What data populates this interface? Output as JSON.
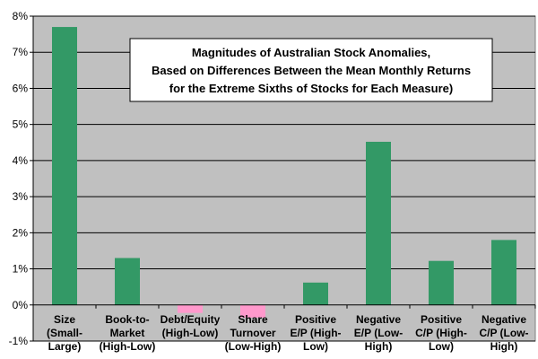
{
  "chart_data": {
    "type": "bar",
    "title_lines": [
      "Magnitudes of Australian Stock Anomalies,",
      "Based on Differences Between the Mean Monthly Returns",
      "for the Extreme Sixths of Stocks for Each Measure)"
    ],
    "categories": [
      [
        "Size",
        "(Small-",
        "Large)"
      ],
      [
        "Book-to-",
        "Market",
        "(High-Low)"
      ],
      [
        "Debt/Equity",
        "(High-Low)"
      ],
      [
        "Share",
        "Turnover",
        "(Low-High)"
      ],
      [
        "Positive",
        "E/P (High-",
        "Low)"
      ],
      [
        "Negative",
        "E/P (Low-",
        "High)"
      ],
      [
        "Positive",
        "C/P (High-",
        "Low)"
      ],
      [
        "Negative",
        "C/P (Low-",
        "High)"
      ]
    ],
    "values": [
      7.7,
      1.3,
      -0.22,
      -0.35,
      0.62,
      4.52,
      1.22,
      1.8
    ],
    "unit": "%",
    "ylim": [
      -1,
      8
    ],
    "yticks": [
      "-1%",
      "0%",
      "1%",
      "2%",
      "3%",
      "4%",
      "5%",
      "6%",
      "7%",
      "8%"
    ],
    "grid": true,
    "legend": "none",
    "colors": {
      "positive": "#339966",
      "negative": "#FF99CC",
      "plot_background": "#C0C0C0",
      "gridline": "#000000"
    }
  }
}
